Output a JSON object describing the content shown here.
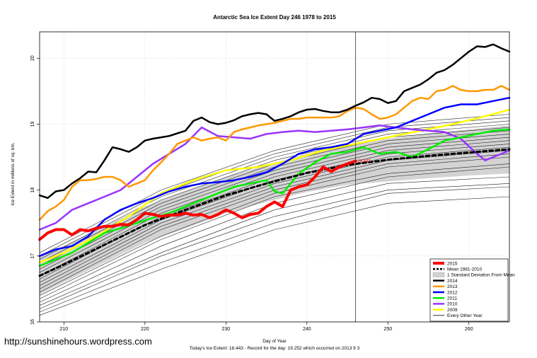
{
  "chart_data": {
    "type": "line",
    "title": "Antarctic Sea Ice Extent Day 246 1978 to 2015",
    "xlabel": "Day of Year",
    "ylabel": "Ice Extent in millions of sq. km.",
    "xlim": [
      207,
      265
    ],
    "ylim": [
      16.0,
      20.4
    ],
    "xticks": [
      210,
      220,
      230,
      240,
      250,
      260
    ],
    "yticks": [
      16,
      17,
      18,
      19,
      20
    ],
    "grid": true,
    "legend_position": "bottom-right",
    "current_day_marker": 246,
    "current_value_label": "18.443",
    "background_years": {
      "label": "Every Other Year",
      "x": [
        207,
        222,
        236,
        250,
        265
      ],
      "lines": [
        [
          16.1,
          16.8,
          17.4,
          17.8,
          17.9
        ],
        [
          16.15,
          16.9,
          17.5,
          17.95,
          18.05
        ],
        [
          16.2,
          17.0,
          17.6,
          18.0,
          18.1
        ],
        [
          16.25,
          17.05,
          17.7,
          18.1,
          18.2
        ],
        [
          16.3,
          17.15,
          17.8,
          18.2,
          18.35
        ],
        [
          16.35,
          17.25,
          17.9,
          18.25,
          18.4
        ],
        [
          16.4,
          17.3,
          17.95,
          18.35,
          18.5
        ],
        [
          16.45,
          17.4,
          18.0,
          18.4,
          18.55
        ],
        [
          16.5,
          17.45,
          18.05,
          18.45,
          18.6
        ],
        [
          16.55,
          17.5,
          18.1,
          18.5,
          18.65
        ],
        [
          16.6,
          17.55,
          18.15,
          18.55,
          18.7
        ],
        [
          16.65,
          17.6,
          18.2,
          18.6,
          18.75
        ],
        [
          16.7,
          17.65,
          18.25,
          18.65,
          18.8
        ],
        [
          16.75,
          17.7,
          18.3,
          18.7,
          18.85
        ],
        [
          16.8,
          17.75,
          18.35,
          18.75,
          18.9
        ],
        [
          16.85,
          17.8,
          18.4,
          18.8,
          18.95
        ],
        [
          16.9,
          17.85,
          18.45,
          18.85,
          19.0
        ],
        [
          16.95,
          17.9,
          18.5,
          18.9,
          19.05
        ],
        [
          17.0,
          17.95,
          18.55,
          18.95,
          19.1
        ],
        [
          17.05,
          18.0,
          18.6,
          19.0,
          19.15
        ]
      ]
    },
    "std_band": {
      "label": "1 Standard Deviation From Mean",
      "x": [
        207,
        210,
        215,
        220,
        225,
        230,
        235,
        240,
        245,
        250,
        255,
        260,
        265
      ],
      "upper": [
        17.0,
        17.15,
        17.45,
        17.75,
        17.98,
        18.2,
        18.38,
        18.55,
        18.68,
        18.78,
        18.86,
        18.92,
        18.98
      ],
      "lower": [
        16.42,
        16.6,
        16.9,
        17.2,
        17.42,
        17.65,
        17.82,
        17.97,
        18.08,
        18.13,
        18.18,
        18.22,
        18.25
      ]
    },
    "series": [
      {
        "name": "2015",
        "color": "#ff0000",
        "width": 4,
        "x": [
          207,
          208,
          209,
          210,
          211,
          212,
          213,
          214,
          215,
          216,
          217,
          218,
          219,
          220,
          221,
          222,
          223,
          224,
          225,
          226,
          227,
          228,
          229,
          230,
          231,
          232,
          233,
          234,
          235,
          236,
          237,
          238,
          239,
          240,
          241,
          242,
          243,
          244,
          245,
          246
        ],
        "y": [
          17.25,
          17.35,
          17.4,
          17.4,
          17.32,
          17.4,
          17.38,
          17.42,
          17.45,
          17.45,
          17.48,
          17.47,
          17.55,
          17.65,
          17.63,
          17.6,
          17.62,
          17.62,
          17.65,
          17.62,
          17.63,
          17.58,
          17.63,
          17.7,
          17.65,
          17.58,
          17.63,
          17.65,
          17.75,
          17.82,
          17.75,
          18.0,
          18.05,
          18.08,
          18.2,
          18.35,
          18.28,
          18.35,
          18.4,
          18.44
        ]
      },
      {
        "name": "Mean 1981-2010",
        "color": "#000000",
        "width": 3,
        "dash": "5,4",
        "x": [
          207,
          210,
          215,
          220,
          225,
          230,
          235,
          240,
          245,
          250,
          255,
          260,
          265
        ],
        "y": [
          16.7,
          16.87,
          17.17,
          17.47,
          17.7,
          17.92,
          18.1,
          18.26,
          18.38,
          18.46,
          18.52,
          18.57,
          18.62
        ]
      },
      {
        "name": "2014",
        "color": "#000000",
        "width": 2.5,
        "x": [
          207,
          208,
          209,
          210,
          211,
          212,
          213,
          214,
          215,
          216,
          217,
          218,
          219,
          220,
          221,
          222,
          223,
          224,
          225,
          226,
          227,
          228,
          229,
          230,
          231,
          232,
          233,
          234,
          235,
          236,
          237,
          238,
          239,
          240,
          241,
          242,
          243,
          244,
          245,
          246,
          247,
          248,
          249,
          250,
          251,
          252,
          253,
          254,
          255,
          256,
          257,
          258,
          259,
          260,
          261,
          262,
          263,
          264,
          265
        ],
        "y": [
          17.92,
          17.88,
          17.98,
          18.0,
          18.1,
          18.18,
          18.28,
          18.27,
          18.45,
          18.65,
          18.62,
          18.58,
          18.65,
          18.75,
          18.78,
          18.8,
          18.82,
          18.86,
          18.9,
          19.05,
          19.1,
          19.03,
          19.0,
          19.02,
          19.06,
          19.12,
          19.15,
          19.17,
          19.15,
          19.05,
          19.08,
          19.12,
          19.18,
          19.22,
          19.23,
          19.2,
          19.18,
          19.18,
          19.22,
          19.28,
          19.33,
          19.4,
          19.38,
          19.32,
          19.35,
          19.5,
          19.55,
          19.6,
          19.68,
          19.78,
          19.82,
          19.9,
          20.0,
          20.1,
          20.18,
          20.17,
          20.21,
          20.15,
          20.1
        ]
      },
      {
        "name": "2013",
        "color": "#ff9900",
        "width": 2.5,
        "x": [
          207,
          208,
          209,
          210,
          211,
          212,
          213,
          214,
          215,
          216,
          217,
          218,
          219,
          220,
          221,
          222,
          223,
          224,
          225,
          226,
          227,
          228,
          229,
          230,
          231,
          232,
          233,
          234,
          235,
          236,
          237,
          238,
          239,
          240,
          241,
          242,
          243,
          244,
          245,
          246,
          247,
          248,
          249,
          250,
          251,
          252,
          253,
          254,
          255,
          256,
          257,
          258,
          259,
          260,
          261,
          262,
          263,
          264,
          265
        ],
        "y": [
          17.55,
          17.68,
          17.75,
          17.85,
          18.05,
          18.15,
          18.15,
          18.17,
          18.2,
          18.2,
          18.15,
          18.05,
          18.1,
          18.15,
          18.3,
          18.42,
          18.55,
          18.7,
          18.75,
          18.8,
          18.75,
          18.78,
          18.8,
          18.75,
          18.88,
          18.92,
          18.95,
          18.98,
          19.0,
          19.02,
          19.05,
          19.08,
          19.08,
          19.1,
          19.1,
          19.1,
          19.1,
          19.12,
          19.2,
          19.25,
          19.23,
          19.15,
          19.08,
          19.1,
          19.15,
          19.25,
          19.35,
          19.4,
          19.38,
          19.5,
          19.52,
          19.58,
          19.52,
          19.5,
          19.5,
          19.52,
          19.52,
          19.58,
          19.52
        ]
      },
      {
        "name": "2012",
        "color": "#0000ff",
        "width": 2.5,
        "x": [
          207,
          209,
          211,
          213,
          215,
          217,
          219,
          221,
          223,
          225,
          227,
          229,
          231,
          233,
          235,
          237,
          239,
          241,
          243,
          245,
          247,
          249,
          251,
          253,
          255,
          257,
          259,
          261,
          263,
          265
        ],
        "y": [
          17.0,
          17.1,
          17.15,
          17.3,
          17.55,
          17.7,
          17.8,
          17.88,
          17.98,
          18.05,
          18.1,
          18.12,
          18.15,
          18.2,
          18.27,
          18.4,
          18.55,
          18.62,
          18.65,
          18.7,
          18.85,
          18.9,
          18.95,
          19.05,
          19.15,
          19.25,
          19.3,
          19.3,
          19.35,
          19.4
        ]
      },
      {
        "name": "2011",
        "color": "#00ee00",
        "width": 2.5,
        "x": [
          207,
          209,
          211,
          213,
          215,
          217,
          219,
          221,
          223,
          225,
          227,
          229,
          231,
          233,
          235,
          236,
          237,
          239,
          241,
          243,
          245,
          247,
          249,
          251,
          253,
          255,
          257,
          259,
          261,
          263,
          265
        ],
        "y": [
          16.85,
          16.95,
          17.05,
          17.2,
          17.35,
          17.42,
          17.5,
          17.58,
          17.65,
          17.75,
          17.85,
          17.95,
          18.05,
          18.1,
          18.15,
          17.98,
          17.95,
          18.25,
          18.42,
          18.55,
          18.58,
          18.65,
          18.55,
          18.58,
          18.5,
          18.62,
          18.75,
          18.8,
          18.85,
          18.9,
          18.92
        ]
      },
      {
        "name": "2010",
        "color": "#9933ff",
        "width": 2.5,
        "x": [
          207,
          209,
          211,
          213,
          215,
          217,
          219,
          221,
          223,
          225,
          227,
          229,
          231,
          233,
          235,
          237,
          239,
          241,
          243,
          245,
          247,
          249,
          251,
          253,
          255,
          257,
          259,
          261,
          262,
          263,
          264,
          265
        ],
        "y": [
          17.4,
          17.5,
          17.7,
          17.8,
          17.9,
          18.0,
          18.2,
          18.4,
          18.55,
          18.7,
          18.95,
          18.82,
          18.8,
          18.78,
          18.85,
          18.88,
          18.9,
          18.88,
          18.9,
          18.92,
          18.95,
          18.98,
          18.95,
          18.92,
          18.9,
          18.88,
          18.78,
          18.55,
          18.45,
          18.5,
          18.55,
          18.6
        ]
      },
      {
        "name": "2009",
        "color": "#ffff00",
        "width": 2.5,
        "x": [
          207,
          210,
          214,
          218,
          222,
          226,
          230,
          234,
          238,
          242,
          246,
          250,
          254,
          258,
          262,
          265
        ],
        "y": [
          16.9,
          17.05,
          17.3,
          17.6,
          17.95,
          18.15,
          18.3,
          18.35,
          18.45,
          18.6,
          18.7,
          18.8,
          18.9,
          19.0,
          19.12,
          19.22
        ]
      }
    ]
  },
  "legend_items": [
    {
      "name": "2015",
      "kind": "line",
      "color": "#ff0000",
      "width": 4
    },
    {
      "name": "Mean 1981-2010",
      "kind": "dash",
      "color": "#000000",
      "width": 2.5
    },
    {
      "name": "1 Standard Deviation From Mean",
      "kind": "box",
      "color": "#d3d3d3"
    },
    {
      "name": "2014",
      "kind": "line",
      "color": "#000000",
      "width": 2.5
    },
    {
      "name": "2013",
      "kind": "line",
      "color": "#ff9900",
      "width": 2.5
    },
    {
      "name": "2012",
      "kind": "line",
      "color": "#0000ff",
      "width": 2.5
    },
    {
      "name": "2011",
      "kind": "line",
      "color": "#00ee00",
      "width": 2.5
    },
    {
      "name": "2010",
      "kind": "line",
      "color": "#9933ff",
      "width": 2.5
    },
    {
      "name": "2009",
      "kind": "line",
      "color": "#ffff00",
      "width": 2.5
    },
    {
      "name": "Every Other Year",
      "kind": "line",
      "color": "#000000",
      "width": 0.8
    }
  ],
  "watermark_url": "http://sunshinehours.wordpress.com",
  "footer_text": "Today's Ice Extent: 18.443  - Record for the day: 19.252 which occurred on 2013 9 3"
}
